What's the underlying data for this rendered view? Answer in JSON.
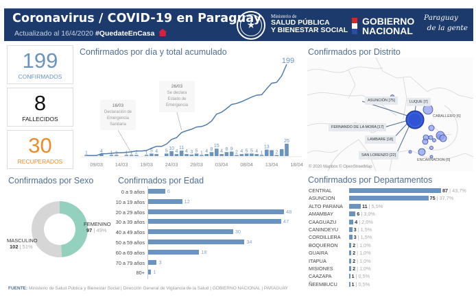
{
  "header": {
    "title": "Coronavirus / COVID-19 en Paraguay",
    "updated": "Actualizado al 16/4/2020",
    "hashtag": "#QuedateEnCasa",
    "ministry_small": "Ministerio de",
    "ministry_line1": "SALUD PÚBLICA",
    "ministry_line2": "Y BIENESTAR SOCIAL",
    "gob_line1": "GOBIERNO",
    "gob_line2": "NACIONAL",
    "slogan_line1": "Paraguay",
    "slogan_line2": "de la gente",
    "flag_colors": [
      "#d52b1e",
      "#ffffff",
      "#0038a8"
    ]
  },
  "kpis": [
    {
      "value": "199",
      "label": "CONFIRMADOS",
      "color": "#6b93bf"
    },
    {
      "value": "8",
      "label": "FALLECIDOS",
      "color": "#111111"
    },
    {
      "value": "30",
      "label": "RECUPERADOS",
      "color": "#ef8a2b"
    }
  ],
  "titles": {
    "daily": "Confirmados por día y total acumulado",
    "district": "Confirmados por Distrito",
    "sex": "Confirmados por Sexo",
    "age": "Confirmados por Edad",
    "dept": "Confirmados por Departamentos"
  },
  "chart_data": [
    {
      "type": "bar+line",
      "title": "Confirmados por día y total acumulado",
      "x_ticks": [
        "09/03",
        "14/03",
        "19/03",
        "24/03",
        "29/03",
        "03/04",
        "08/04",
        "13/04",
        "18/04"
      ],
      "dates": [
        "07/03",
        "08/03",
        "09/03",
        "10/03",
        "11/03",
        "12/03",
        "13/03",
        "14/03",
        "15/03",
        "16/03",
        "17/03",
        "18/03",
        "19/03",
        "20/03",
        "21/03",
        "22/03",
        "23/03",
        "24/03",
        "25/03",
        "26/03",
        "27/03",
        "28/03",
        "29/03",
        "30/03",
        "31/03",
        "01/04",
        "02/04",
        "03/04",
        "04/04",
        "05/04",
        "06/04",
        "07/04",
        "08/04",
        "09/04",
        "10/04",
        "11/04",
        "12/04",
        "13/04",
        "14/04",
        "15/04",
        "16/04"
      ],
      "daily": [
        1,
        0,
        0,
        4,
        0,
        1,
        1,
        0,
        1,
        1,
        2,
        0,
        1,
        5,
        4,
        0,
        5,
        10,
        4,
        11,
        4,
        3,
        5,
        1,
        4,
        8,
        15,
        4,
        8,
        9,
        2,
        4,
        5,
        5,
        4,
        1,
        13,
        12,
        2,
        14,
        25
      ],
      "show_label": [
        1,
        0,
        0,
        1,
        0,
        1,
        1,
        0,
        1,
        1,
        1,
        0,
        1,
        1,
        1,
        0,
        1,
        1,
        1,
        1,
        1,
        1,
        1,
        1,
        1,
        1,
        1,
        1,
        1,
        1,
        1,
        1,
        1,
        1,
        1,
        1,
        1,
        0,
        1,
        0,
        1
      ],
      "cumulative_end_label": "199",
      "annotations": [
        {
          "date": "16/03",
          "lines": [
            "16/03",
            "Declaración de",
            "Emergencia",
            "Sanitaria"
          ]
        },
        {
          "date": "26/03",
          "lines": [
            "26/03",
            "Se declara",
            "Estado de",
            "Emergencia"
          ]
        }
      ],
      "bar_color": "#6b93bf",
      "line_color": "#4e7cab"
    },
    {
      "type": "pie",
      "title": "Confirmados por Sexo",
      "slices": [
        {
          "label": "FEMENINO",
          "value": 97,
          "pct": "49%",
          "color": "#93d0bd"
        },
        {
          "label": "MASCULINO",
          "value": 102,
          "pct": "51%",
          "color": "#d6d6d6"
        }
      ]
    },
    {
      "type": "bar",
      "orientation": "horizontal",
      "title": "Confirmados por Edad",
      "categories": [
        "0 a 9 años",
        "10 a 19 años",
        "20 a 29 años",
        "30 a 39 años",
        "40 a 49 años",
        "50 a 59 años",
        "60 a 69 años",
        "70 a 79 años",
        "80+"
      ],
      "values": [
        6,
        12,
        48,
        47,
        30,
        34,
        18,
        3,
        1
      ],
      "xlim": [
        0,
        48
      ]
    },
    {
      "type": "bar",
      "orientation": "horizontal",
      "title": "Confirmados por Departamentos",
      "categories": [
        "CENTRAL",
        "ASUNCION",
        "ALTO PARANA",
        "AMAMBAY",
        "CAAGUAZU",
        "CANINDEYU",
        "CORDILLERA",
        "BOQUERON",
        "GUAIRA",
        "ITAPUA",
        "MISIONES",
        "CAAZAPA",
        "ÑEEMBUCU"
      ],
      "values": [
        87,
        75,
        11,
        6,
        4,
        3,
        3,
        2,
        2,
        2,
        2,
        1,
        1
      ],
      "percents": [
        "43,7%",
        "37,7%",
        "5,5%",
        "3,0%",
        "2,0%",
        "1,5%",
        "1,5%",
        "1,0%",
        "1,0%",
        "1,0%",
        "1,0%",
        "0,5%",
        "0,5%"
      ],
      "xlim": [
        0,
        87
      ]
    }
  ],
  "map": {
    "labels": [
      {
        "text": "ASUNCIÓN [75]",
        "boxed": true
      },
      {
        "text": "LUQUE [7]",
        "boxed": true
      },
      {
        "text": "CABALLERO [6]",
        "boxed": false
      },
      {
        "text": "FERNANDO DE LA MORA [17]",
        "boxed": true
      },
      {
        "text": "LAMBARE [18]",
        "boxed": true
      },
      {
        "text": "SAN LORENZO [22]",
        "boxed": true
      },
      {
        "text": "ENCARNACION [5]",
        "boxed": false
      }
    ],
    "attribution": "© 2020 Mapbox © OpenStreetMap"
  },
  "footer": {
    "label": "FUENTE:",
    "text": "Ministerio de Salud Pública y Bienestar Social | Dirección General de Vigilancia de la Salud | GOBIERNO NACIONAL | PARAGUAY"
  }
}
